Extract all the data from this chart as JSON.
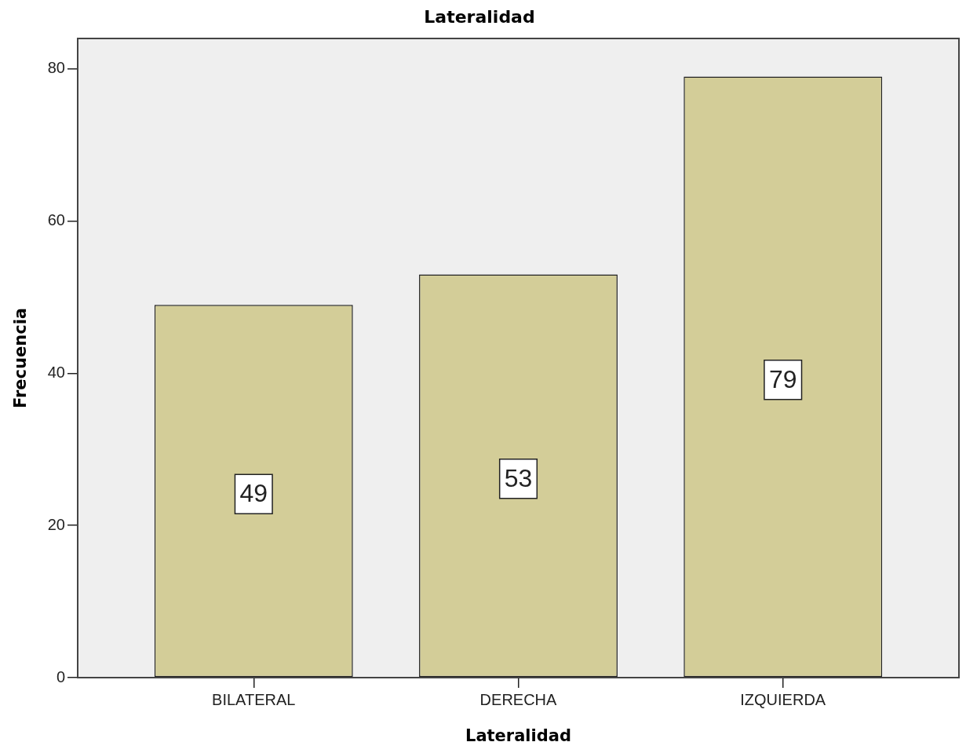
{
  "chart_data": {
    "type": "bar",
    "title": "Lateralidad",
    "xlabel": "Lateralidad",
    "ylabel": "Frecuencia",
    "categories": [
      "BILATERAL",
      "DERECHA",
      "IZQUIERDA"
    ],
    "values": [
      49,
      53,
      79
    ],
    "color": "#d3cd98",
    "ylim": [
      0,
      84
    ],
    "yticks": [
      0,
      20,
      40,
      60,
      80
    ],
    "data_labels": true
  }
}
